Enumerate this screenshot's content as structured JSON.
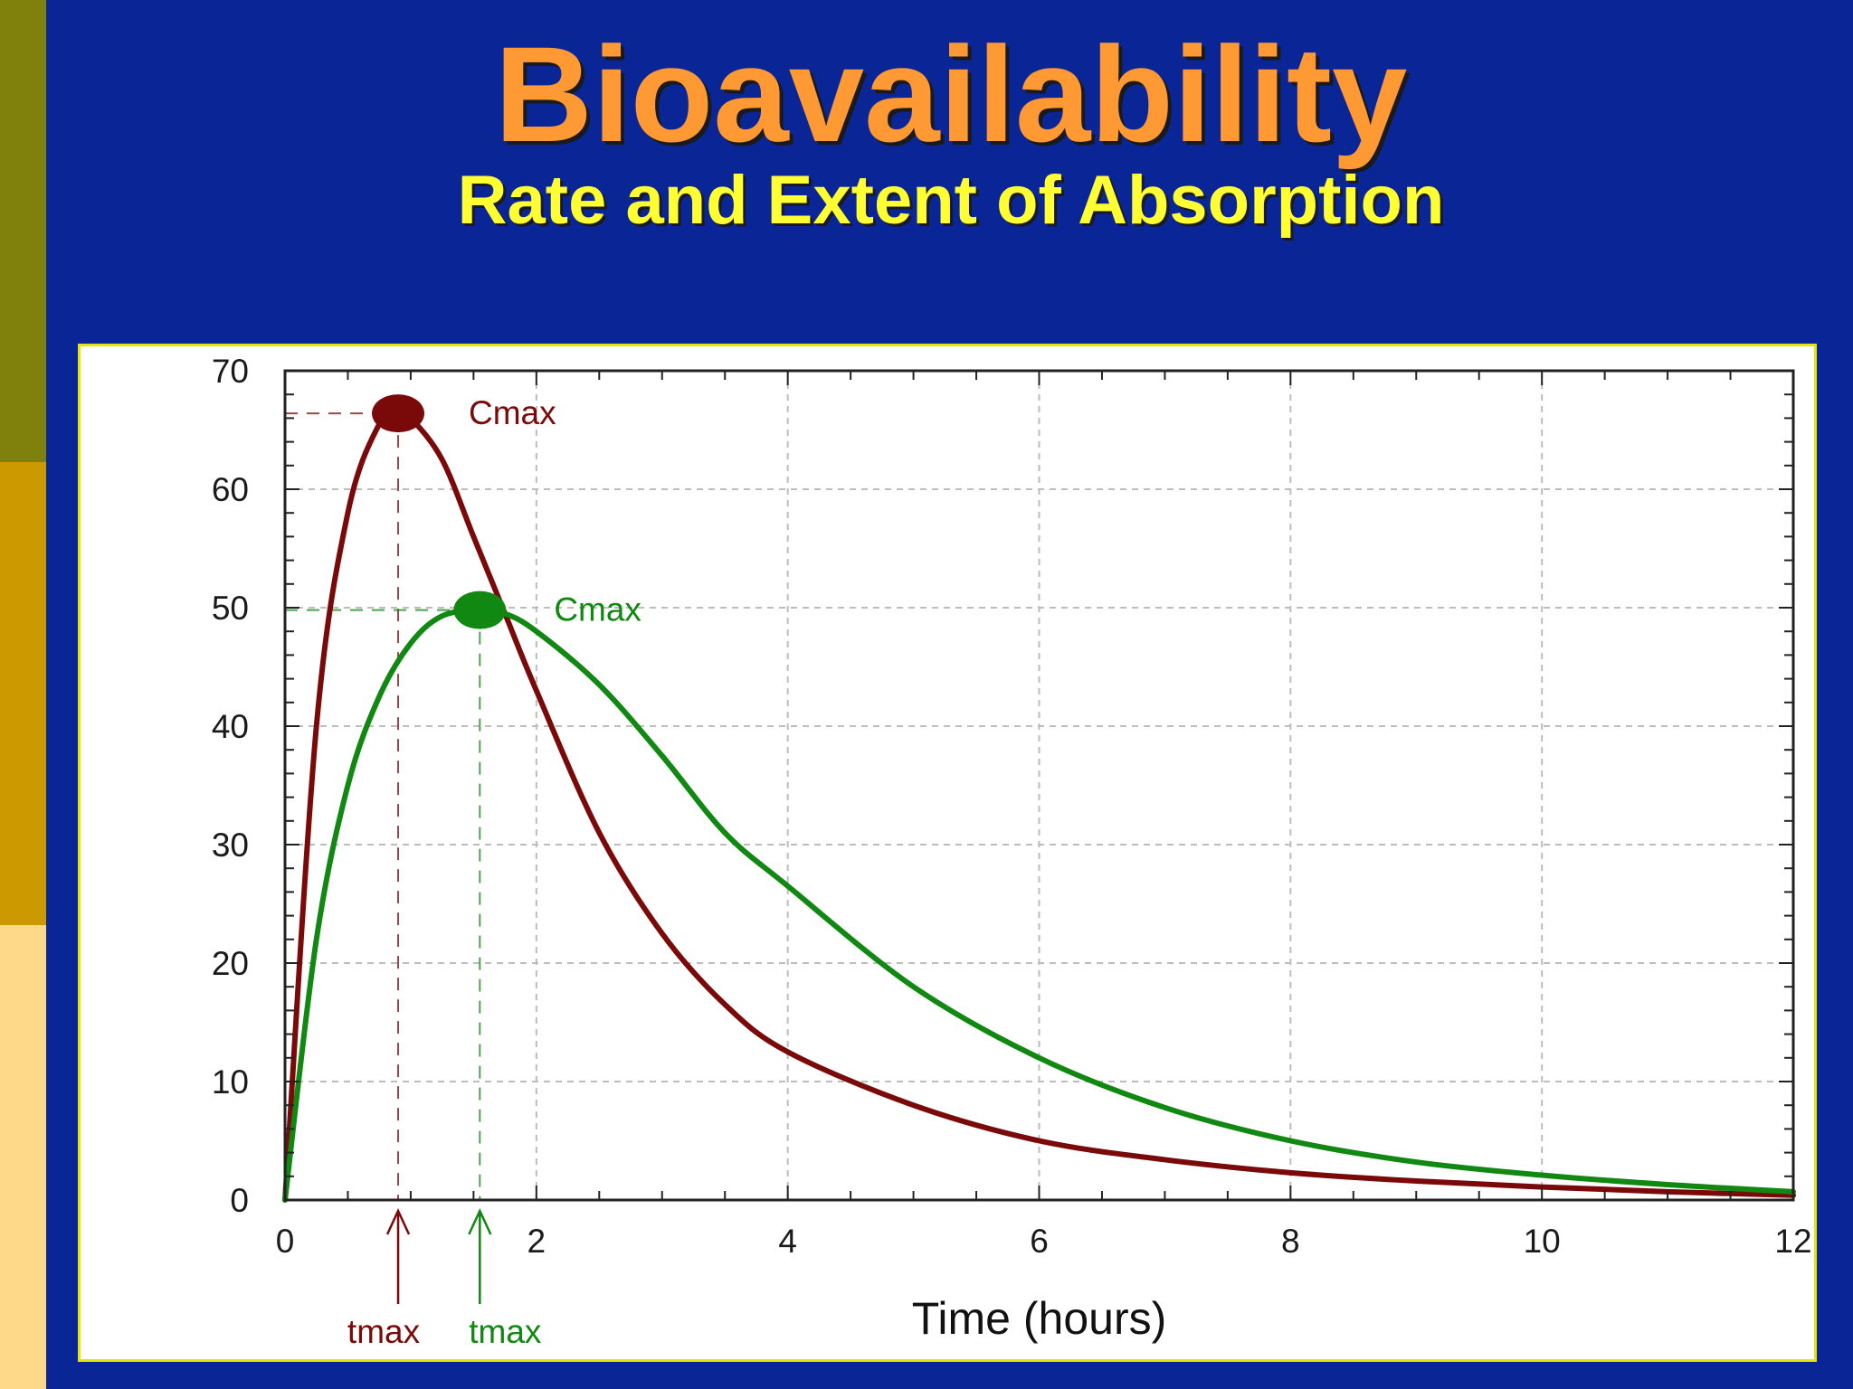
{
  "slide": {
    "title": "Bioavailability",
    "subtitle": "Rate and Extent of Absorption"
  },
  "colors": {
    "background": "#0a2596",
    "title": "#ff9933",
    "subtitle": "#ffff33",
    "stripe_top": "#80800d",
    "stripe_middle": "#cc9900",
    "stripe_bottom": "#ffd98a",
    "frame": "#e6e600"
  },
  "chart_data": {
    "type": "line",
    "title": "",
    "xlabel": "Time (hours)",
    "ylabel": "",
    "xlim": [
      0,
      12
    ],
    "ylim": [
      0,
      70
    ],
    "x_ticks": [
      0,
      2,
      4,
      6,
      8,
      10,
      12
    ],
    "y_ticks": [
      0,
      10,
      20,
      30,
      40,
      50,
      60,
      70
    ],
    "grid": true,
    "series": [
      {
        "color": "#7a0a0a",
        "x": [
          0,
          0.25,
          0.5,
          0.75,
          0.9,
          1.0,
          1.25,
          1.5,
          1.75,
          2.0,
          2.5,
          3.0,
          3.5,
          4.0,
          5.0,
          6.0,
          7.0,
          8.0,
          9.0,
          10.0,
          11.0,
          12.0
        ],
        "y": [
          0,
          40,
          58,
          65.5,
          66.4,
          66,
          62.5,
          56,
          49.5,
          43,
          31,
          22.5,
          16.5,
          12.5,
          8,
          5,
          3.4,
          2.3,
          1.6,
          1.1,
          0.7,
          0.4
        ],
        "peak": {
          "x": 0.9,
          "y": 66.4,
          "label": "Cmax",
          "tmax_label": "tmax"
        }
      },
      {
        "color": "#118811",
        "x": [
          0,
          0.25,
          0.5,
          0.75,
          1.0,
          1.25,
          1.55,
          1.75,
          2.0,
          2.5,
          3.0,
          3.5,
          4.0,
          5.0,
          6.0,
          7.0,
          8.0,
          9.0,
          10.0,
          11.0,
          12.0
        ],
        "y": [
          0,
          22,
          35,
          42.5,
          47,
          49.3,
          49.8,
          49.5,
          48,
          43.5,
          37.5,
          31,
          26.5,
          18,
          12,
          7.8,
          5,
          3.2,
          2.1,
          1.3,
          0.7
        ],
        "peak": {
          "x": 1.55,
          "y": 49.8,
          "label": "Cmax",
          "tmax_label": "tmax"
        }
      }
    ]
  }
}
